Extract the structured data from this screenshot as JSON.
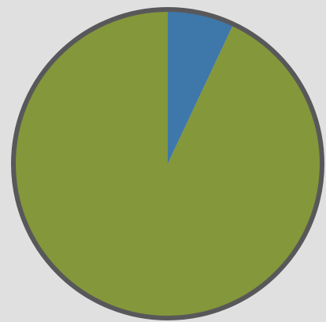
{
  "chart_data": {
    "type": "pie",
    "values": [
      7,
      93
    ],
    "colors": [
      "#3e77a9",
      "#84973a"
    ],
    "border_color": "#58585a"
  }
}
